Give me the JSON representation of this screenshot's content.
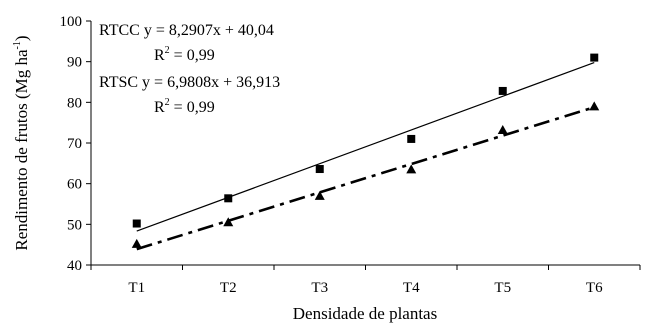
{
  "chart_data": {
    "type": "scatter",
    "title": "",
    "xlabel": "Densidade de plantas",
    "ylabel_main": "Rendimento de frutos (Mg ha",
    "ylabel_sup": "-1",
    "ylabel_close": ")",
    "categories": [
      "T1",
      "T2",
      "T3",
      "T4",
      "T5",
      "T6"
    ],
    "ylim": [
      40,
      100
    ],
    "yticks": [
      "40",
      "50",
      "60",
      "70",
      "80",
      "90",
      "100"
    ],
    "grid": false,
    "series": [
      {
        "name": "RTCC",
        "marker": "square",
        "values": [
          50.2,
          56.4,
          63.6,
          71.0,
          82.8,
          91.0
        ],
        "trend": {
          "slope": 8.2907,
          "intercept": 40.04,
          "style": "solid"
        },
        "equation": "RTCC y = 8,2907x + 40,04",
        "r2_prefix": "R",
        "r2_sup": "2",
        "r2_value": " = 0,99"
      },
      {
        "name": "RTSC",
        "marker": "triangle",
        "values": [
          45.2,
          50.5,
          57.0,
          63.5,
          73.2,
          79.0
        ],
        "trend": {
          "slope": 6.9808,
          "intercept": 36.913,
          "style": "dash-dot"
        },
        "equation": "RTSC y = 6,9808x + 36,913",
        "r2_prefix": "R",
        "r2_sup": "2",
        "r2_value": " = 0,99"
      }
    ]
  }
}
